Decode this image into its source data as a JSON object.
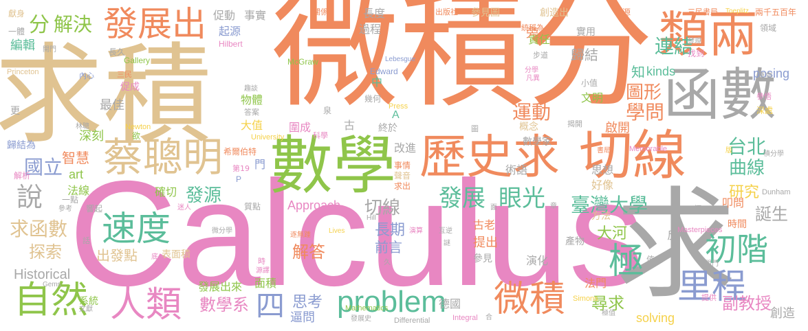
{
  "words": [
    {
      "text": "微積分",
      "color": "#f08a5d"
    },
    {
      "text": "Calculus",
      "color": "#e887c2"
    },
    {
      "text": "求積",
      "color": "#e0c391"
    },
    {
      "text": "求",
      "color": "#a8a8a8"
    },
    {
      "text": "數學",
      "color": "#8fc54a"
    },
    {
      "text": "類兩",
      "color": "#f08a5d"
    },
    {
      "text": "函數",
      "color": "#a8a8a8"
    },
    {
      "text": "歷史求",
      "color": "#f08a5d"
    },
    {
      "text": "切線",
      "color": "#f08a5d"
    },
    {
      "text": "蔡聰明",
      "color": "#e0c391"
    },
    {
      "text": "發展出",
      "color": "#f08a5d"
    },
    {
      "text": "速度",
      "color": "#5bbd9a"
    },
    {
      "text": "自然",
      "color": "#8fc54a"
    },
    {
      "text": "人類",
      "color": "#e887c2"
    },
    {
      "text": "problem",
      "color": "#5bbd9a"
    },
    {
      "text": "微積",
      "color": "#f08a5d"
    },
    {
      "text": "里程",
      "color": "#8a9bd0"
    },
    {
      "text": "初階",
      "color": "#5bbd9a"
    },
    {
      "text": "極",
      "color": "#5bbd9a"
    },
    {
      "text": "說",
      "color": "#a8a8a8"
    },
    {
      "text": "四",
      "color": "#8a9bd0"
    },
    {
      "text": "眼光",
      "color": "#5bbd9a"
    },
    {
      "text": "發展",
      "color": "#5bbd9a"
    },
    {
      "text": "臺灣大學",
      "color": "#5bbd9a"
    },
    {
      "text": "學問",
      "color": "#f08a5d"
    },
    {
      "text": "運動",
      "color": "#f08a5d"
    },
    {
      "text": "圖形",
      "color": "#f08a5d"
    },
    {
      "text": "解決",
      "color": "#8fc54a"
    },
    {
      "text": "分",
      "color": "#8fc54a"
    },
    {
      "text": "連結",
      "color": "#5bbd9a"
    },
    {
      "text": "國立",
      "color": "#8a9bd0"
    },
    {
      "text": "曲線",
      "color": "#5bbd9a"
    },
    {
      "text": "台北",
      "color": "#5bbd9a"
    },
    {
      "text": "研究",
      "color": "#f5d14a"
    },
    {
      "text": "誕生",
      "color": "#a8a8a8"
    },
    {
      "text": "求函數",
      "color": "#e0c391"
    },
    {
      "text": "探索",
      "color": "#e0c391"
    },
    {
      "text": "發源",
      "color": "#5bbd9a"
    },
    {
      "text": "切線",
      "color": "#a8a8a8"
    },
    {
      "text": "數學系",
      "color": "#e887c2"
    },
    {
      "text": "解答",
      "color": "#f08a5d"
    },
    {
      "text": "副教授",
      "color": "#e887c2"
    },
    {
      "text": "尋求",
      "color": "#8fc54a"
    },
    {
      "text": "Approach",
      "color": "#e887c2"
    },
    {
      "text": "Historical",
      "color": "#a8a8a8"
    },
    {
      "text": "solving",
      "color": "#f5d14a"
    },
    {
      "text": "posing",
      "color": "#8a9bd0"
    },
    {
      "text": "kinds",
      "color": "#5bbd9a"
    },
    {
      "text": "大河",
      "color": "#8fc54a"
    },
    {
      "text": "出發點",
      "color": "#e0c391"
    },
    {
      "text": "長期",
      "color": "#8a9bd0"
    },
    {
      "text": "前言",
      "color": "#8a9bd0"
    },
    {
      "text": "思考",
      "color": "#8a9bd0"
    },
    {
      "text": "逼問",
      "color": "#8a9bd0"
    },
    {
      "text": "創造",
      "color": "#a8a8a8"
    },
    {
      "text": "歸結",
      "color": "#a8a8a8"
    },
    {
      "text": "知",
      "color": "#5bbd9a"
    },
    {
      "text": "最佳",
      "color": "#a8a8a8"
    },
    {
      "text": "編輯",
      "color": "#5bbd9a"
    },
    {
      "text": "事實",
      "color": "#a8a8a8"
    },
    {
      "text": "促動",
      "color": "#a8a8a8"
    },
    {
      "text": "起源",
      "color": "#8a9bd0"
    },
    {
      "text": "長度",
      "color": "#a8a8a8"
    },
    {
      "text": "過程",
      "color": "#a8a8a8"
    },
    {
      "text": "責任",
      "color": "#8fc54a"
    },
    {
      "text": "參見圖",
      "color": "#e0c391"
    },
    {
      "text": "創造出",
      "color": "#e0c391"
    },
    {
      "text": "實用",
      "color": "#a8a8a8"
    },
    {
      "text": "文明",
      "color": "#8fc54a"
    },
    {
      "text": "概念",
      "color": "#e0c391"
    },
    {
      "text": "啟開",
      "color": "#f08a5d"
    },
    {
      "text": "思想",
      "color": "#a8a8a8"
    },
    {
      "text": "好像",
      "color": "#e0c391"
    },
    {
      "text": "術語",
      "color": "#a8a8a8"
    },
    {
      "text": "改進",
      "color": "#a8a8a8"
    },
    {
      "text": "數學家",
      "color": "#a8a8a8"
    },
    {
      "text": "終於",
      "color": "#a8a8a8"
    },
    {
      "text": "幾何",
      "color": "#a8a8a8"
    },
    {
      "text": "圍成",
      "color": "#e887c2"
    },
    {
      "text": "大值",
      "color": "#f5d14a"
    },
    {
      "text": "物體",
      "color": "#8fc54a"
    },
    {
      "text": "深刻",
      "color": "#8fc54a"
    },
    {
      "text": "智慧",
      "color": "#f08a5d"
    },
    {
      "text": "art",
      "color": "#8fc54a"
    },
    {
      "text": "法線",
      "color": "#8fc54a"
    },
    {
      "text": "確切",
      "color": "#8fc54a"
    },
    {
      "text": "表面積",
      "color": "#e0c391"
    },
    {
      "text": "面積",
      "color": "#8fc54a"
    },
    {
      "text": "發展出來",
      "color": "#8fc54a"
    },
    {
      "text": "系統",
      "color": "#8fc54a"
    },
    {
      "text": "法門",
      "color": "#f08a5d"
    },
    {
      "text": "提出",
      "color": "#f08a5d"
    },
    {
      "text": "參見",
      "color": "#a8a8a8"
    },
    {
      "text": "演化",
      "color": "#a8a8a8"
    },
    {
      "text": "時間",
      "color": "#f08a5d"
    },
    {
      "text": "方法",
      "color": "#e0c391"
    },
    {
      "text": "叩問",
      "color": "#f08a5d"
    },
    {
      "text": "德國",
      "color": "#a8a8a8"
    },
    {
      "text": "古老",
      "color": "#f08a5d"
    },
    {
      "text": "產物",
      "color": "#a8a8a8"
    },
    {
      "text": "反",
      "color": "#a8a8a8"
    },
    {
      "text": "旁",
      "color": "#f08a5d"
    },
    {
      "text": "中",
      "color": "#5bbd9a"
    },
    {
      "text": "A",
      "color": "#5bbd9a"
    },
    {
      "text": "古",
      "color": "#a8a8a8"
    },
    {
      "text": "門",
      "color": "#8a9bd0"
    },
    {
      "text": "欲",
      "color": "#8fc54a"
    },
    {
      "text": "更",
      "color": "#a8a8a8"
    },
    {
      "text": "歸結為",
      "color": "#8a9bd0"
    },
    {
      "text": "解析",
      "color": "#e887c2"
    },
    {
      "text": "一點",
      "color": "#a8a8a8"
    },
    {
      "text": "獻身",
      "color": "#e0c391"
    },
    {
      "text": "一體",
      "color": "#a8a8a8"
    },
    {
      "text": "促成",
      "color": "#e887c2"
    },
    {
      "text": "長久",
      "color": "#a8a8a8"
    },
    {
      "text": "McGraw",
      "color": "#8fc54a"
    },
    {
      "text": "Hilbert",
      "color": "#e887c2"
    },
    {
      "text": "Gallery",
      "color": "#8fc54a"
    },
    {
      "text": "Princeton",
      "color": "#e0c391"
    },
    {
      "text": "Newton",
      "color": "#f5d14a"
    },
    {
      "text": "Edward",
      "color": "#8a9bd0"
    },
    {
      "text": "Press",
      "color": "#f5d14a"
    },
    {
      "text": "University",
      "color": "#f5d14a"
    },
    {
      "text": "Memorable",
      "color": "#e887c2"
    },
    {
      "text": "Dunham",
      "color": "#a8a8a8"
    },
    {
      "text": "Masterpieces",
      "color": "#e887c2"
    },
    {
      "text": "Mathematics",
      "color": "#8fc54a"
    },
    {
      "text": "Differential",
      "color": "#a8a8a8"
    },
    {
      "text": "Integral",
      "color": "#e887c2"
    },
    {
      "text": "Simons",
      "color": "#f5d14a"
    },
    {
      "text": "Lebesgue",
      "color": "#8a9bd0"
    },
    {
      "text": "Toeplitz",
      "color": "#f5d14a"
    },
    {
      "text": "兩千五百年",
      "color": "#f08a5d"
    },
    {
      "text": "三民書局",
      "color": "#f08a5d"
    },
    {
      "text": "有源",
      "color": "#f08a5d"
    },
    {
      "text": "出版社",
      "color": "#f08a5d"
    },
    {
      "text": "關係",
      "color": "#f08a5d"
    },
    {
      "text": "領域",
      "color": "#a8a8a8"
    },
    {
      "text": "發現",
      "color": "#a8a8a8"
    },
    {
      "text": "找到",
      "color": "#e887c2"
    },
    {
      "text": "統稱為",
      "color": "#f08a5d"
    },
    {
      "text": "步道",
      "color": "#a8a8a8"
    },
    {
      "text": "分學",
      "color": "#e887c2"
    },
    {
      "text": "凡異",
      "color": "#e887c2"
    },
    {
      "text": "漂亮",
      "color": "#a8a8a8"
    },
    {
      "text": "參悟",
      "color": "#e887c2"
    },
    {
      "text": "深處",
      "color": "#f5d14a"
    },
    {
      "text": "積分學",
      "color": "#a8a8a8"
    },
    {
      "text": "揭開",
      "color": "#a8a8a8"
    },
    {
      "text": "書局",
      "color": "#f08a5d"
    },
    {
      "text": "小值",
      "color": "#a8a8a8"
    },
    {
      "text": "圖",
      "color": "#a8a8a8"
    },
    {
      "text": "事情",
      "color": "#f08a5d"
    },
    {
      "text": "聲音",
      "color": "#e0c391"
    },
    {
      "text": "求出",
      "color": "#f08a5d"
    },
    {
      "text": "科學",
      "color": "#e887c2"
    },
    {
      "text": "泉",
      "color": "#a8a8a8"
    },
    {
      "text": "希爾伯特",
      "color": "#f08a5d"
    },
    {
      "text": "第19",
      "color": "#e887c2"
    },
    {
      "text": "P",
      "color": "#8a9bd0"
    },
    {
      "text": "趣談",
      "color": "#a8a8a8"
    },
    {
      "text": "答案",
      "color": "#a8a8a8"
    },
    {
      "text": "三民",
      "color": "#f08a5d"
    },
    {
      "text": "內心",
      "color": "#8a9bd0"
    },
    {
      "text": "林聰",
      "color": "#a8a8a8"
    },
    {
      "text": "開門",
      "color": "#a8a8a8"
    },
    {
      "text": "質點",
      "color": "#a8a8a8"
    },
    {
      "text": "迷人",
      "color": "#e887c2"
    },
    {
      "text": "響起",
      "color": "#a8a8a8"
    },
    {
      "text": "微分學",
      "color": "#a8a8a8"
    },
    {
      "text": "Lives",
      "color": "#f5d14a"
    },
    {
      "text": "Hill",
      "color": "#a8a8a8"
    },
    {
      "text": "參考",
      "color": "#a8a8a8"
    },
    {
      "text": "話",
      "color": "#a8a8a8"
    },
    {
      "text": "底",
      "color": "#e887c2"
    },
    {
      "text": "逐無踵",
      "color": "#f08a5d"
    },
    {
      "text": "時",
      "color": "#e887c2"
    },
    {
      "text": "源譯",
      "color": "#e887c2"
    },
    {
      "text": "Gems",
      "color": "#a8a8a8"
    },
    {
      "text": "文獻",
      "color": "#a8a8a8"
    },
    {
      "text": "發展史",
      "color": "#a8a8a8"
    },
    {
      "text": "合",
      "color": "#a8a8a8"
    },
    {
      "text": "演算",
      "color": "#e887c2"
    },
    {
      "text": "互逆",
      "color": "#a8a8a8"
    },
    {
      "text": "謎",
      "color": "#a8a8a8"
    },
    {
      "text": "久",
      "color": "#a8a8a8"
    },
    {
      "text": "極值",
      "color": "#a8a8a8"
    },
    {
      "text": "值",
      "color": "#a8a8a8"
    },
    {
      "text": "提供",
      "color": "#e887c2"
    },
    {
      "text": "章",
      "color": "#a8a8a8"
    },
    {
      "text": "面",
      "color": "#a8a8a8"
    },
    {
      "text": "涯",
      "color": "#a8a8a8"
    },
    {
      "text": "版",
      "color": "#f5d14a"
    },
    {
      "text": "閱門",
      "color": "#a8a8a8"
    }
  ]
}
